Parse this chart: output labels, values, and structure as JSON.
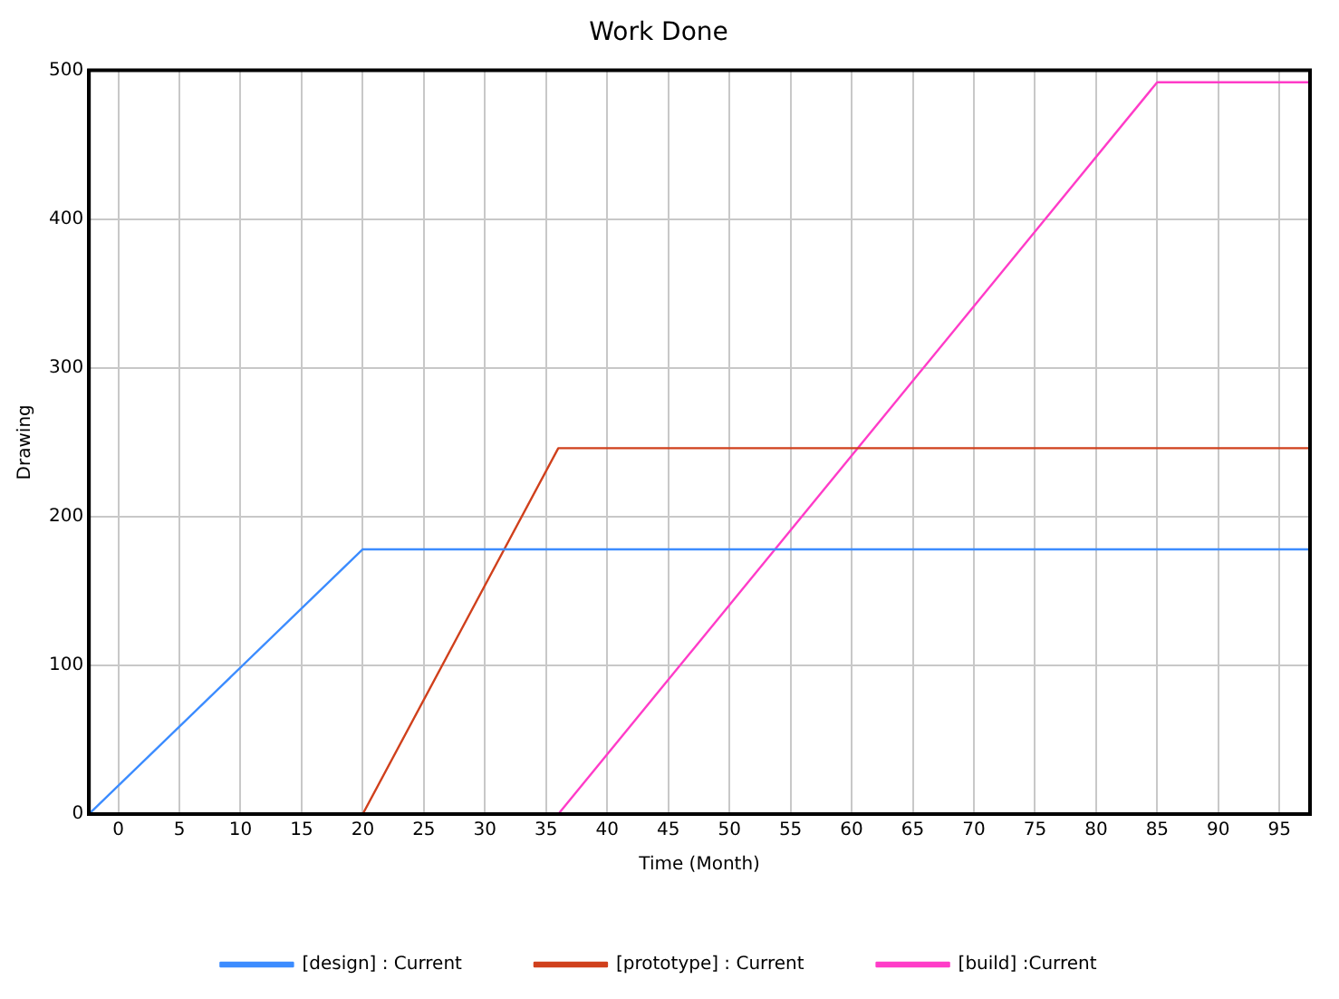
{
  "chart_data": {
    "type": "line",
    "title": "Work Done",
    "xlabel": "Time (Month)",
    "ylabel": "Drawing",
    "xlim": [
      -2.4,
      97.5
    ],
    "xticks": [
      0,
      5,
      10,
      15,
      20,
      25,
      30,
      35,
      40,
      45,
      50,
      55,
      60,
      65,
      70,
      75,
      80,
      85,
      90,
      95
    ],
    "ylim": [
      0,
      500
    ],
    "yticks": [
      0,
      100,
      200,
      300,
      400,
      500
    ],
    "grid": true,
    "legend": "bottom",
    "marker": "none",
    "line_style": "solid",
    "series": [
      {
        "name": "[design] : Current",
        "color": "#3c8cff",
        "x": [
          -2.4,
          20,
          97.5
        ],
        "values": [
          0,
          178,
          178
        ]
      },
      {
        "name": "[prototype] : Current",
        "color": "#d0401c",
        "x": [
          -2.4,
          20,
          36,
          97.5
        ],
        "values": [
          0,
          0,
          246,
          246
        ]
      },
      {
        "name": "[build] :Current",
        "color": "#ff3cc8",
        "x": [
          -2.4,
          36,
          85,
          97.5
        ],
        "values": [
          0,
          0,
          492,
          492
        ]
      }
    ]
  }
}
